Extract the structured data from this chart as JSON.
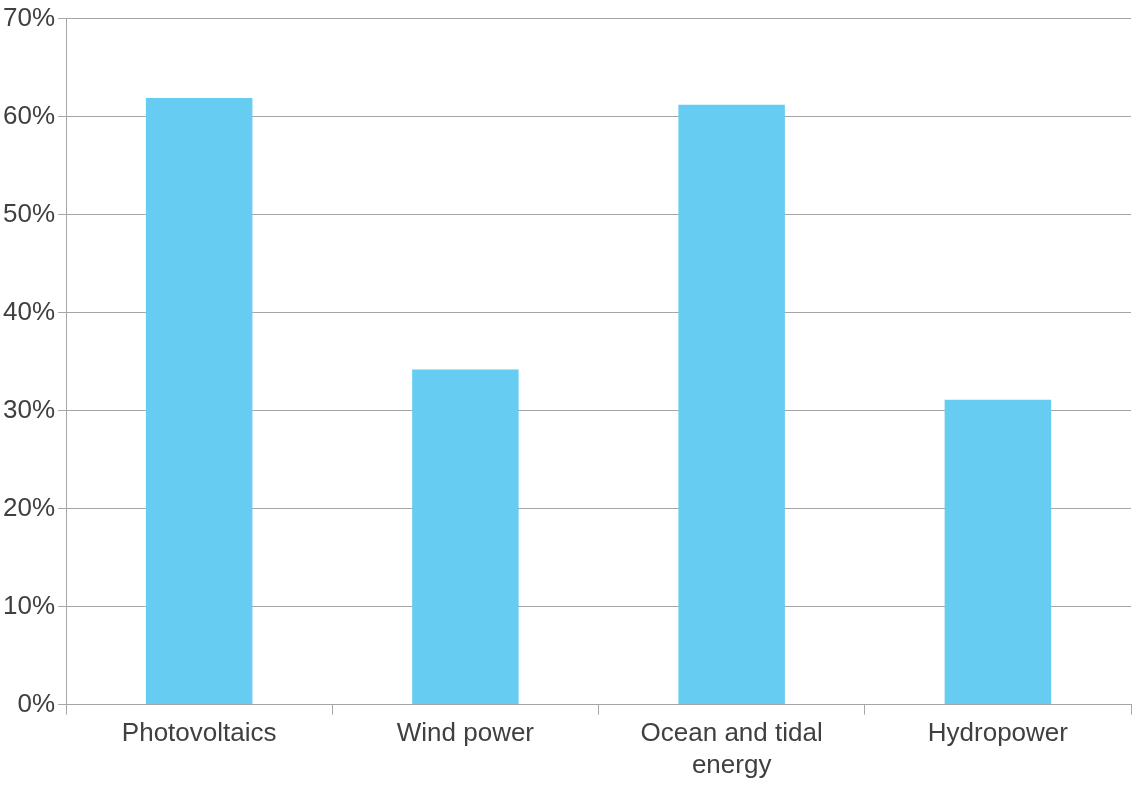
{
  "chart_data": {
    "type": "bar",
    "categories": [
      "Photovoltaics",
      "Wind power",
      "Ocean and tidal energy",
      "Hydropower"
    ],
    "values": [
      61.9,
      34.2,
      61.2,
      31.1
    ],
    "color": "#66ccf2",
    "ylim": [
      0,
      70
    ],
    "yticks": [
      {
        "value": 0,
        "label": "0%"
      },
      {
        "value": 10,
        "label": "10%"
      },
      {
        "value": 20,
        "label": "20%"
      },
      {
        "value": 30,
        "label": "30%"
      },
      {
        "value": 40,
        "label": "40%"
      },
      {
        "value": 50,
        "label": "50%"
      },
      {
        "value": 60,
        "label": "60%"
      },
      {
        "value": 70,
        "label": "70%"
      }
    ],
    "grid": "y",
    "legend": false
  }
}
